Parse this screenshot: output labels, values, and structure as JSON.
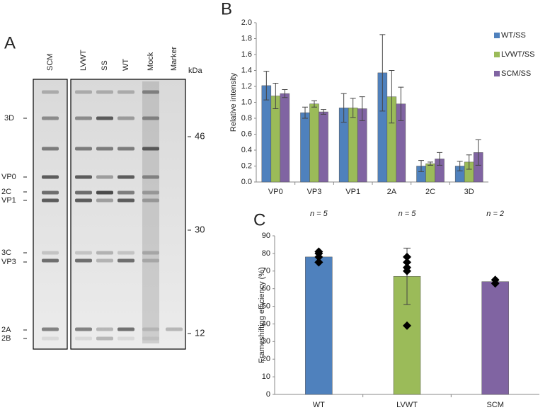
{
  "panel_a": {
    "label": "A",
    "lanes": [
      "SCM",
      "LVWT",
      "SS",
      "WT",
      "Mock",
      "Marker"
    ],
    "unit": "kDa",
    "bands": [
      "3D",
      "VP0",
      "2C",
      "VP1",
      "3C",
      "VP3",
      "2A",
      "2B"
    ],
    "markers": [
      "46",
      "30",
      "12"
    ]
  },
  "chart_data": [
    {
      "type": "grouped-bar",
      "label": "B",
      "y_label": "Relative intensity",
      "categories": [
        "VP0",
        "VP3",
        "VP1",
        "2A",
        "2C",
        "3D"
      ],
      "series": [
        {
          "name": "WT/SS",
          "color": "#4f81bd",
          "values": [
            1.21,
            0.87,
            0.93,
            1.37,
            0.2,
            0.2
          ],
          "errors": [
            0.18,
            0.07,
            0.18,
            0.48,
            0.07,
            0.06
          ]
        },
        {
          "name": "LVWT/SS",
          "color": "#9bbb59",
          "values": [
            1.08,
            0.98,
            0.93,
            1.07,
            0.23,
            0.25
          ],
          "errors": [
            0.16,
            0.04,
            0.12,
            0.33,
            0.02,
            0.09
          ]
        },
        {
          "name": "SCM/SS",
          "color": "#8064a2",
          "values": [
            1.11,
            0.88,
            0.92,
            0.98,
            0.29,
            0.37
          ],
          "errors": [
            0.05,
            0.03,
            0.15,
            0.21,
            0.08,
            0.16
          ]
        }
      ],
      "ylim": [
        0,
        2
      ],
      "yticks": [
        {
          "value": 0,
          "label": "0.0"
        },
        0.2,
        0.4,
        0.6,
        0.8,
        {
          "value": 1,
          "label": "1.0"
        },
        1.2,
        1.4,
        1.6,
        1.8,
        {
          "value": 2,
          "label": "2.0"
        }
      ],
      "legend": "right"
    },
    {
      "type": "bar",
      "label": "C",
      "y_label": "Frameshifting efficiency (%)",
      "categories": [
        "WT",
        "LVWT",
        "SCM"
      ],
      "colors": [
        "#4f81bd",
        "#9bbb59",
        "#8064a2"
      ],
      "values": [
        78,
        67,
        64
      ],
      "errors": [
        3,
        16,
        1
      ],
      "annotations": [
        "n = 5",
        "n = 5",
        "n = 2"
      ],
      "points": [
        [
          81,
          80,
          78,
          75,
          75
        ],
        [
          78,
          75,
          72,
          70,
          39
        ],
        [
          65,
          63
        ]
      ],
      "ylim": [
        0,
        90
      ],
      "yticks": [
        0,
        10,
        20,
        30,
        40,
        50,
        60,
        70,
        80,
        90
      ]
    }
  ]
}
